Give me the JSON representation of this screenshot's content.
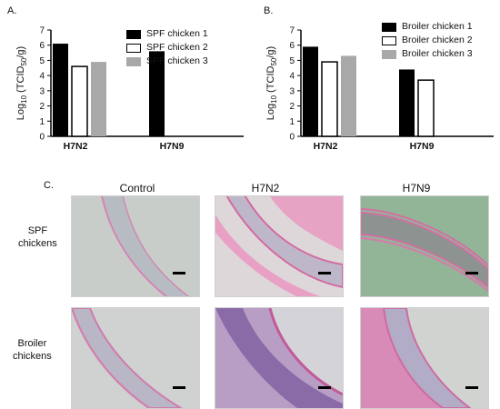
{
  "panels": {
    "a_label": "A.",
    "b_label": "B.",
    "c_label": "C."
  },
  "chart_data": [
    {
      "type": "bar",
      "categories": [
        "H7N2",
        "H7N9"
      ],
      "series": [
        {
          "name": "SPF chicken 1",
          "values": [
            6.1,
            5.6
          ],
          "color": "#000000",
          "fill": "solid"
        },
        {
          "name": "SPF chicken 2",
          "values": [
            4.6,
            0
          ],
          "color": "#ffffff",
          "fill": "outline"
        },
        {
          "name": "SPF chicken 3",
          "values": [
            4.9,
            0
          ],
          "color": "#a8a8a8",
          "fill": "solid"
        }
      ],
      "ylabel_prefix": "Log",
      "ylabel_log_base": "10",
      "ylabel_paren_open": " (TCID",
      "ylabel_subscript": "50",
      "ylabel_suffix": "/g)",
      "ylim": [
        0,
        7
      ],
      "yticks": [
        "0",
        "1",
        "2",
        "3",
        "4",
        "5",
        "6",
        "7"
      ],
      "legend_position": "top-right"
    },
    {
      "type": "bar",
      "categories": [
        "H7N2",
        "H7N9"
      ],
      "series": [
        {
          "name": "Broiler chicken 1",
          "values": [
            5.9,
            4.4
          ],
          "color": "#000000",
          "fill": "solid"
        },
        {
          "name": "Broiler chicken 2",
          "values": [
            4.9,
            3.7
          ],
          "color": "#ffffff",
          "fill": "outline"
        },
        {
          "name": "Broiler chicken 3",
          "values": [
            5.3,
            0
          ],
          "color": "#a8a8a8",
          "fill": "solid"
        }
      ],
      "ylabel_prefix": "Log",
      "ylabel_log_base": "10",
      "ylabel_paren_open": " (TCID",
      "ylabel_subscript": "50",
      "ylabel_suffix": "/g)",
      "ylim": [
        0,
        7
      ],
      "yticks": [
        "0",
        "1",
        "2",
        "3",
        "4",
        "5",
        "6",
        "7"
      ],
      "legend_position": "top-right"
    }
  ],
  "histology": {
    "columns": [
      "Control",
      "H7N2",
      "H7N9"
    ],
    "rows": [
      "SPF\nchickens",
      "Broiler\nchickens"
    ],
    "stain_colors": {
      "tissue": "#c9a7c9",
      "lumen_edge": "#d6709f",
      "background_grey": "#c9cdc9",
      "background_green": "#93b597"
    }
  }
}
